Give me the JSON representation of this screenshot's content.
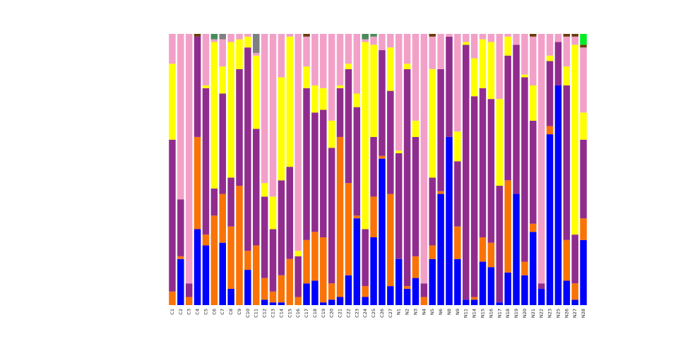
{
  "chart_data": {
    "type": "stacked_bar",
    "categories": [
      "C1",
      "C2",
      "C3",
      "C4",
      "C5",
      "C6",
      "C7",
      "C8",
      "C9",
      "C10",
      "C11",
      "C12",
      "C13",
      "C14",
      "C15",
      "C16",
      "C17",
      "C18",
      "C19",
      "C20",
      "C21",
      "C22",
      "C23",
      "C24",
      "C25",
      "C26",
      "C27",
      "N1",
      "N2",
      "N3",
      "N4",
      "N5",
      "N6",
      "N8",
      "N9",
      "N11",
      "N14",
      "N15",
      "N16",
      "N17",
      "N18",
      "N19",
      "N20",
      "N21",
      "N22",
      "N23",
      "N25",
      "N26",
      "N27",
      "N28"
    ],
    "ylim": [
      0,
      100
    ],
    "series": [
      {
        "color": "#0000ff",
        "values": [
          0,
          17,
          0,
          28,
          22,
          0,
          23,
          6,
          0,
          13,
          0,
          2,
          1,
          1,
          0,
          0,
          8,
          9,
          1,
          2,
          3,
          11,
          32,
          3,
          25,
          54,
          7,
          17,
          6,
          10,
          0,
          17,
          41,
          62,
          17,
          2,
          2,
          16,
          14,
          1,
          12,
          41,
          11,
          27,
          6,
          63,
          81,
          9,
          2,
          24
        ]
      },
      {
        "color": "#f97306",
        "values": [
          5,
          1,
          3,
          34,
          4,
          33,
          18,
          23,
          44,
          7,
          22,
          8,
          4,
          10,
          17,
          3,
          16,
          18,
          24,
          6,
          59,
          34,
          1,
          4,
          15,
          1,
          34,
          0,
          1,
          8,
          3,
          5,
          1,
          0,
          12,
          0,
          1,
          9,
          9,
          0,
          34,
          0,
          5,
          3,
          0,
          3,
          0,
          15,
          6,
          8
        ]
      },
      {
        "color": "#912c8f",
        "values": [
          56,
          21,
          5,
          37,
          54,
          10,
          37,
          18,
          43,
          75,
          43,
          30,
          23,
          35,
          34,
          15,
          56,
          44,
          47,
          50,
          18,
          42,
          40,
          21,
          22,
          39,
          38,
          39,
          80,
          44,
          5,
          25,
          45,
          37,
          24,
          94,
          74,
          55,
          53,
          43,
          46,
          55,
          68,
          38,
          2,
          24,
          16,
          57,
          18,
          29
        ]
      },
      {
        "color": "#ffff00",
        "values": [
          28,
          0,
          0,
          0,
          1,
          54,
          10,
          50,
          11,
          4,
          27,
          5,
          12,
          38,
          48,
          2,
          8,
          10,
          8,
          10,
          1,
          2,
          5,
          69,
          34,
          0,
          16,
          1,
          2,
          6,
          0,
          40,
          0,
          0,
          11,
          1,
          14,
          18,
          21,
          32,
          7,
          0,
          1,
          13,
          0,
          2,
          0,
          7,
          70,
          10
        ]
      },
      {
        "color": "#f2a0c8",
        "values": [
          11,
          61,
          92,
          0,
          19,
          1,
          10,
          3,
          2,
          1,
          1,
          55,
          60,
          16,
          1,
          80,
          11,
          19,
          20,
          32,
          19,
          11,
          22,
          1,
          3,
          6,
          5,
          43,
          11,
          32,
          92,
          12,
          13,
          1,
          36,
          3,
          9,
          2,
          3,
          24,
          1,
          4,
          15,
          18,
          92,
          8,
          3,
          11,
          3,
          24
        ]
      },
      {
        "color": "#808080",
        "values": [
          0,
          0,
          0,
          0,
          0,
          0,
          2,
          0,
          0,
          0,
          7,
          0,
          0,
          0,
          0,
          0,
          0,
          0,
          0,
          0,
          0,
          0,
          0,
          0,
          0,
          0,
          0,
          0,
          0,
          0,
          0,
          0,
          0,
          0,
          0,
          0,
          0,
          0,
          0,
          0,
          0,
          0,
          0,
          0,
          0,
          0,
          0,
          0,
          0,
          0
        ]
      },
      {
        "color": "#4a8a5a",
        "values": [
          0,
          0,
          0,
          0,
          0,
          2,
          0,
          0,
          0,
          0,
          0,
          0,
          0,
          0,
          0,
          0,
          0,
          0,
          0,
          0,
          0,
          0,
          0,
          2,
          1,
          0,
          0,
          0,
          0,
          0,
          0,
          0,
          0,
          0,
          0,
          0,
          0,
          0,
          0,
          0,
          0,
          0,
          0,
          0,
          0,
          0,
          0,
          0,
          0,
          0
        ]
      },
      {
        "color": "#6b3a0f",
        "values": [
          0,
          0,
          0,
          1,
          0,
          0,
          0,
          0,
          0,
          0,
          0,
          0,
          0,
          0,
          0,
          0,
          1,
          0,
          0,
          0,
          0,
          0,
          0,
          0,
          0,
          0,
          0,
          0,
          0,
          0,
          0,
          1,
          0,
          0,
          0,
          0,
          0,
          0,
          0,
          0,
          0,
          0,
          0,
          1,
          0,
          0,
          0,
          1,
          1,
          1
        ]
      },
      {
        "color": "#00ee22",
        "values": [
          0,
          0,
          0,
          0,
          0,
          0,
          0,
          0,
          0,
          0,
          0,
          0,
          0,
          0,
          0,
          0,
          0,
          0,
          0,
          0,
          0,
          0,
          0,
          0,
          0,
          0,
          0,
          0,
          0,
          0,
          0,
          0,
          0,
          0,
          0,
          0,
          0,
          0,
          0,
          0,
          0,
          0,
          0,
          0,
          0,
          0,
          0,
          0,
          0,
          4
        ]
      }
    ]
  }
}
